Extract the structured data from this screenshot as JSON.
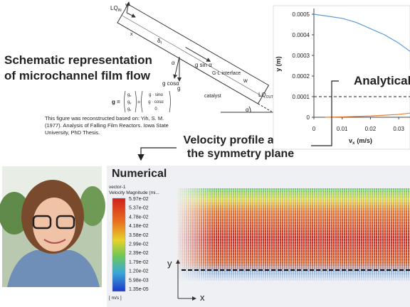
{
  "schematic": {
    "title": [
      "Schematic representation",
      "of microchannel film flow"
    ],
    "labels": {
      "lq_in": {
        "main": "LQ",
        "sub": "IN"
      },
      "y_axis": "y",
      "x_axis": "x",
      "film": {
        "main": "δ",
        "sub": "f"
      },
      "alpha_1": "α",
      "g_sin": "g sin α",
      "interface": "G-L interface",
      "g_cos": "g cosα",
      "g": "g",
      "w": "w",
      "catalyst": "catalyst",
      "lq_out": {
        "main": "LQ",
        "sub": "OUT"
      },
      "alpha_2": "α"
    },
    "formula": {
      "lhs": "g =",
      "components": [
        [
          "g",
          "x"
        ],
        [
          "g",
          "y"
        ],
        [
          "g",
          "z"
        ]
      ],
      "eq": "=",
      "values": [
        "g · sinα",
        "g · cosα",
        "0"
      ]
    },
    "citation": [
      "This figure was reconstructed based on: Yih, S. M.",
      "(1977). Analysis of Falling Film Reactors. Iowa State",
      "University, PhD Thesis."
    ]
  },
  "callout": [
    "Velocity profile along",
    "the symmetry plane"
  ],
  "analytical": {
    "title": "Analytical",
    "ylabel": "y (m)",
    "xlabel": {
      "main": "v",
      "sub": "x",
      "unit": "(m/s)"
    },
    "xlim": [
      0,
      0.034
    ],
    "ylim": [
      0,
      0.0005
    ],
    "xticks": [
      0,
      0.01,
      0.02,
      0.03
    ],
    "yticks": [
      0,
      0.0001,
      0.0002,
      0.0003,
      0.0004,
      0.0005
    ],
    "reference_line": 0.0001,
    "series": [
      {
        "color": "#5b9bd5",
        "x": [
          0,
          0.005,
          0.01,
          0.015,
          0.02,
          0.025,
          0.03,
          0.034
        ],
        "values": [
          0.0005,
          0.00049,
          0.00048,
          0.00046,
          0.00043,
          0.0004,
          0.00036,
          0.00032
        ]
      },
      {
        "color": "#ed7d31",
        "x": [
          0.004,
          0.01,
          0.015,
          0.02,
          0.025,
          0.03,
          0.034
        ],
        "values": [
          0,
          2e-06,
          4e-06,
          6e-06,
          1e-05,
          1.4e-05,
          2e-05
        ]
      }
    ]
  },
  "numerical": {
    "title": "Numerical",
    "legend_title": [
      "vector-1",
      "Velocity Magnitude (mi..."
    ],
    "colorbar_labels": [
      "5.97e-02",
      "5.37e-02",
      "4.78e-02",
      "4.18e-02",
      "3.58e-02",
      "2.99e-02",
      "2.39e-02",
      "1.79e-02",
      "1.20e-02",
      "5.98e-03",
      "1.35e-05"
    ],
    "unit": "[ m/s ]",
    "axis_y": "y",
    "axis_x": "x"
  }
}
